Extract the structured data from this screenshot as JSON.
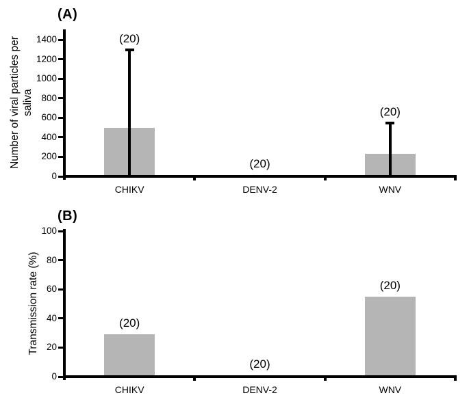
{
  "figure": {
    "background_color": "#ffffff",
    "axis_color": "#000000",
    "text_color": "#000000",
    "bar_color": "#b5b5b5"
  },
  "chart_data": [
    {
      "type": "bar",
      "panel_label": "(A)",
      "title": "",
      "xlabel": "",
      "ylabel": "Number of viral particles per saliva",
      "ylabel_lines": [
        "Number of viral particles per",
        "saliva"
      ],
      "categories": [
        "CHIKV",
        "DENV-2",
        "WNV"
      ],
      "values": [
        500,
        0,
        230
      ],
      "error_bars_upper": [
        1300,
        null,
        550
      ],
      "sample_size_labels": [
        "(20)",
        "(20)",
        "(20)"
      ],
      "ylim": [
        0,
        1400
      ],
      "ytick_step": 200,
      "yticks": [
        0,
        200,
        400,
        600,
        800,
        1000,
        1200,
        1400
      ],
      "grid": false,
      "legend": "none",
      "bar_color": "#b5b5b5"
    },
    {
      "type": "bar",
      "panel_label": "(B)",
      "title": "",
      "xlabel": "",
      "ylabel": "Transmission rate (%)",
      "ylabel_lines": [
        "Transmission rate (%)"
      ],
      "categories": [
        "CHIKV",
        "DENV-2",
        "WNV"
      ],
      "values": [
        29,
        0,
        55
      ],
      "error_bars_upper": [
        null,
        null,
        null
      ],
      "sample_size_labels": [
        "(20)",
        "(20)",
        "(20)"
      ],
      "ylim": [
        0,
        100
      ],
      "ytick_step": 20,
      "yticks": [
        0,
        20,
        40,
        60,
        80,
        100
      ],
      "grid": false,
      "legend": "none",
      "bar_color": "#b5b5b5"
    }
  ]
}
